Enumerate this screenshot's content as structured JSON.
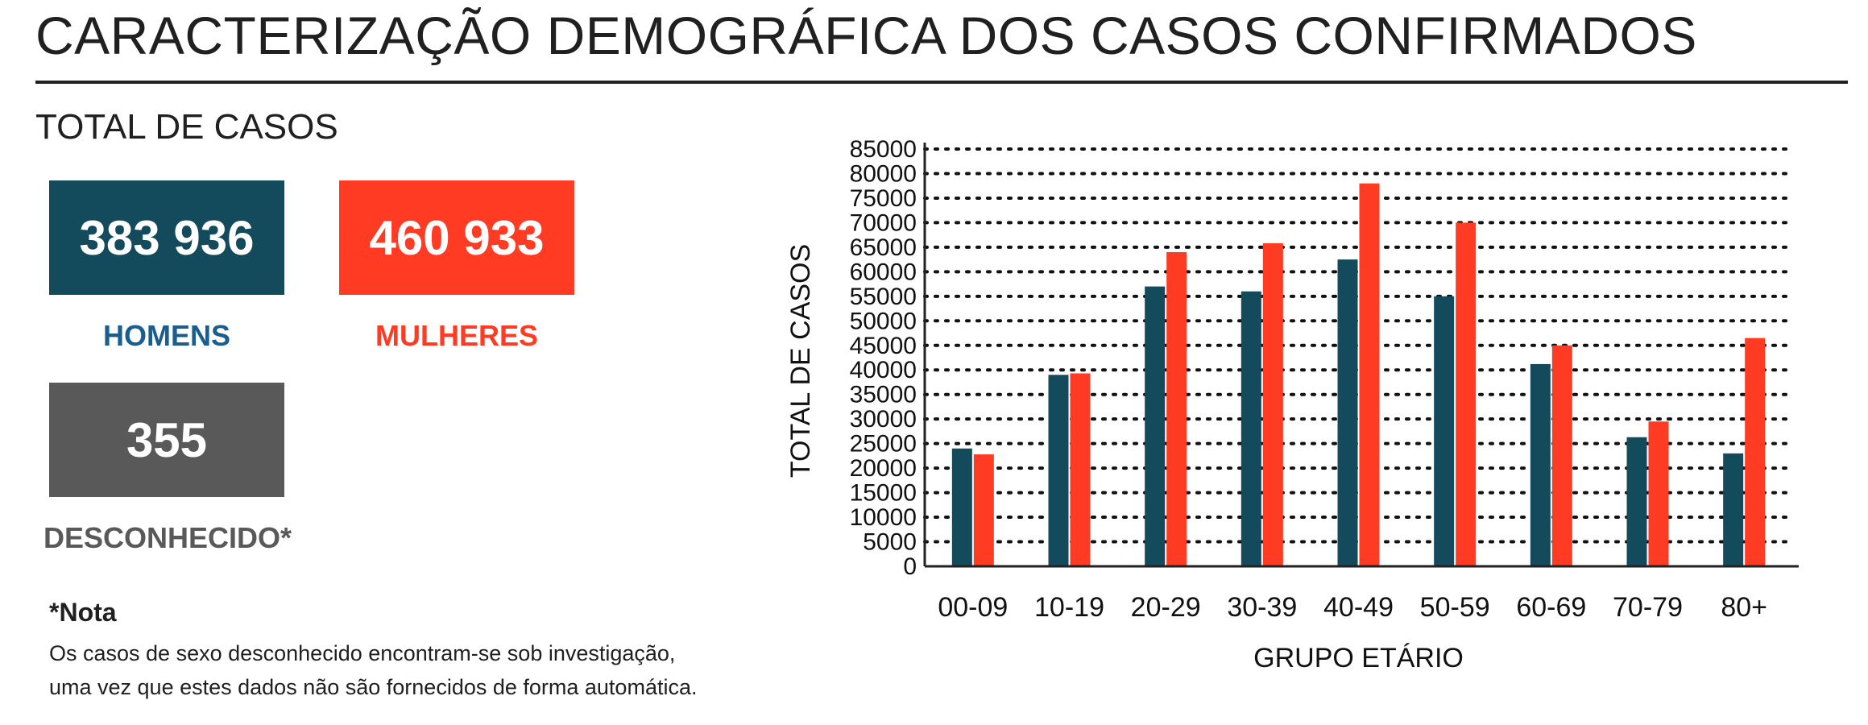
{
  "header": {
    "title": "CARACTERIZAÇÃO DEMOGRÁFICA DOS CASOS CONFIRMADOS"
  },
  "totals": {
    "title": "TOTAL DE CASOS",
    "men": {
      "value": "383 936",
      "label": "HOMENS"
    },
    "women": {
      "value": "460 933",
      "label": "MULHERES"
    },
    "unknown": {
      "value": "355",
      "label": "DESCONHECIDO*"
    }
  },
  "note": {
    "title": "*Nota",
    "line1": "Os casos de sexo desconhecido encontram-se sob investigação,",
    "line2": "uma vez que estes dados não são fornecidos de forma automática."
  },
  "colors": {
    "men": "#144b5c",
    "women": "#ff3b24",
    "unknown": "#595959",
    "men_label": "#1a5e8e"
  },
  "chart_data": {
    "type": "bar",
    "xlabel": "GRUPO ETÁRIO",
    "ylabel": "TOTAL DE CASOS",
    "ylim": [
      0,
      85000
    ],
    "yticks": [
      0,
      5000,
      10000,
      15000,
      20000,
      25000,
      30000,
      35000,
      40000,
      45000,
      50000,
      55000,
      60000,
      65000,
      70000,
      75000,
      80000,
      85000
    ],
    "grid": "dotted horizontal",
    "legend": "none",
    "categories": [
      "00-09",
      "10-19",
      "20-29",
      "30-39",
      "40-49",
      "50-59",
      "60-69",
      "70-79",
      "80+"
    ],
    "series": [
      {
        "values": [
          24000,
          39000,
          57000,
          56000,
          62500,
          55000,
          41200,
          26300,
          23000
        ],
        "color": "#144b5c"
      },
      {
        "values": [
          22800,
          39300,
          64000,
          65800,
          78000,
          70000,
          45000,
          29500,
          46500
        ],
        "color": "#ff3b24"
      }
    ]
  }
}
